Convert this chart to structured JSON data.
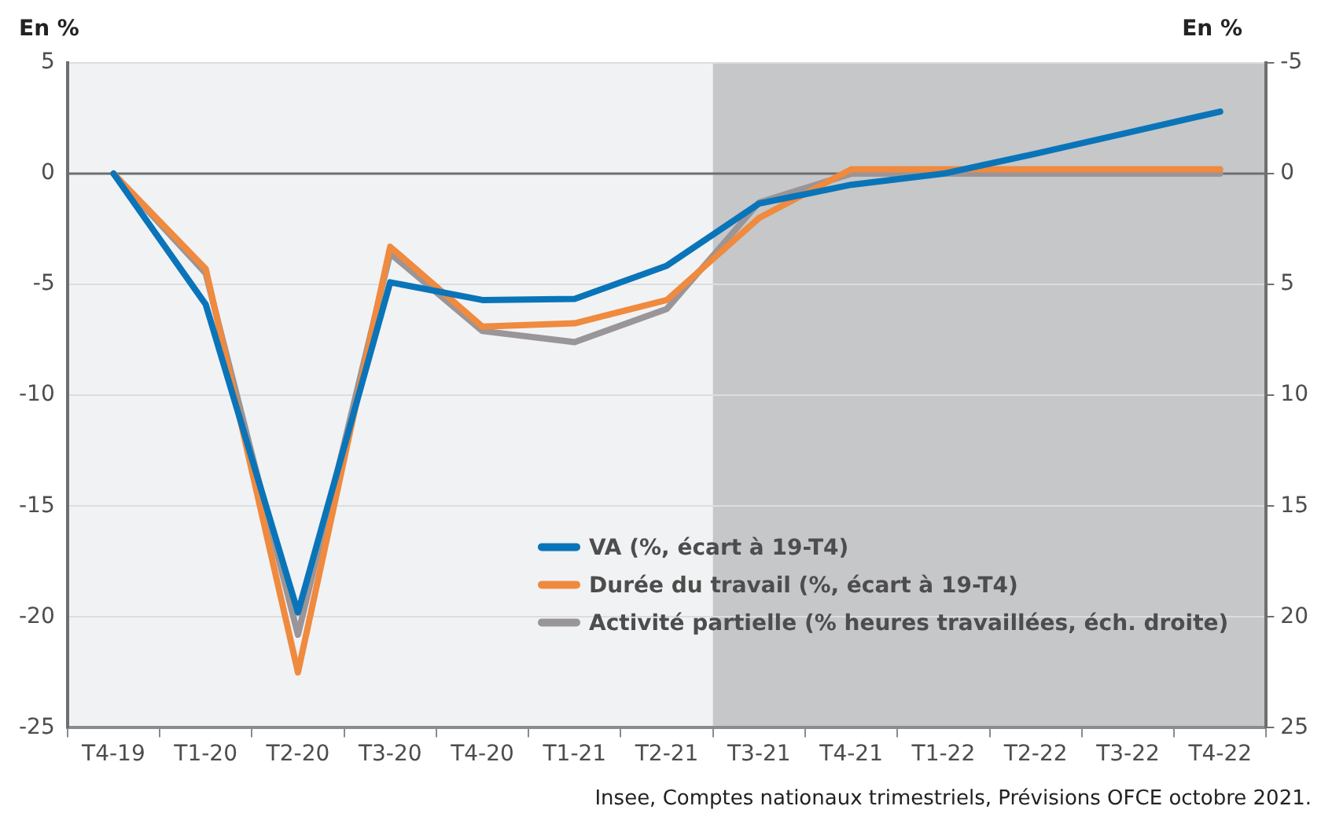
{
  "chart_data": {
    "type": "line",
    "ylabel": "En %",
    "y2label": "En %",
    "categories": [
      "T4-19",
      "T1-20",
      "T2-20",
      "T3-20",
      "T4-20",
      "T1-21",
      "T2-21",
      "T3-21",
      "T4-21",
      "T1-22",
      "T2-22",
      "T3-22",
      "T4-22"
    ],
    "series": [
      {
        "name": "VA (%, écart à 19-T4)",
        "color": "#0a74b9",
        "values": [
          0,
          -5.9,
          -19.8,
          -4.9,
          -5.7,
          -5.65,
          -4.15,
          -1.35,
          -0.5,
          0,
          0.9,
          1.85,
          2.8
        ]
      },
      {
        "name": "Durée du travail (%, écart à 19-T4)",
        "color": "#ef8a3e",
        "values": [
          0,
          -4.3,
          -22.5,
          -3.3,
          -6.9,
          -6.75,
          -5.7,
          -2.0,
          0.2,
          0.2,
          0.2,
          0.2,
          0.2
        ]
      },
      {
        "name": "Activité partielle (% heures travaillées, éch. droite)",
        "color": "#9a9598",
        "axis": "y2",
        "values": [
          0,
          4.5,
          20.8,
          3.6,
          7.1,
          7.6,
          6.1,
          1.3,
          0,
          0,
          0,
          0,
          0
        ]
      }
    ],
    "ylim": [
      -25,
      5
    ],
    "yticks": [
      -25,
      -20,
      -15,
      -10,
      -5,
      0,
      5
    ],
    "y2lim": [
      25,
      -5
    ],
    "y2ticks": [
      25,
      20,
      15,
      10,
      5,
      0,
      -5
    ],
    "ref_lines": [
      {
        "axis": "y",
        "value": 0,
        "color": "#6d6e70"
      }
    ],
    "bands": [
      {
        "axis": "x",
        "from": "T3-21",
        "to": "T4-22",
        "color": "#c6c7c9"
      }
    ],
    "grid": "y",
    "legend": "bottom right",
    "marker": "none",
    "line_style": "solid",
    "annotations": [
      "Insee, Comptes nationaux trimestriels, Prévisions OFCE octobre 2021."
    ]
  }
}
